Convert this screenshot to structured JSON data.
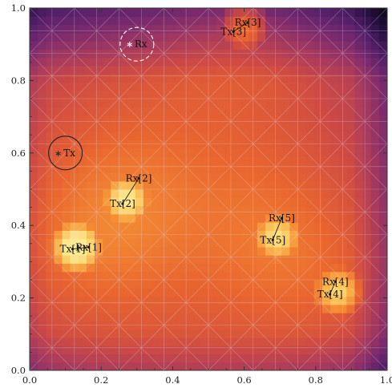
{
  "chart_data": {
    "type": "heatmap",
    "title": "",
    "xlabel": "",
    "ylabel": "",
    "xlim": [
      0.0,
      1.0
    ],
    "ylim": [
      0.0,
      1.0
    ],
    "x_ticks": [
      "0.0",
      "0.2",
      "0.4",
      "0.6",
      "0.8",
      "1.0"
    ],
    "y_ticks": [
      "0.0",
      "0.2",
      "0.4",
      "0.6",
      "0.8",
      "1.0"
    ],
    "grid": true,
    "colormap": [
      "#0f0a1e",
      "#2c1147",
      "#55206a",
      "#7c2b6d",
      "#a73a5e",
      "#cf4b43",
      "#e9652f",
      "#f59034",
      "#fcc35a",
      "#fdeb8f"
    ],
    "hotspots": [
      {
        "x": 0.13,
        "y": 0.34,
        "peak": 0.95
      },
      {
        "x": 0.27,
        "y": 0.47,
        "peak": 0.93
      },
      {
        "x": 0.6,
        "y": 0.95,
        "peak": 0.8
      },
      {
        "x": 0.69,
        "y": 0.37,
        "peak": 0.86
      },
      {
        "x": 0.86,
        "y": 0.22,
        "peak": 0.86
      }
    ],
    "markers": [
      {
        "label": "Tx",
        "x": 0.1,
        "y": 0.6,
        "circle": "solid",
        "color": "#222222"
      },
      {
        "label": "Rx",
        "x": 0.3,
        "y": 0.9,
        "circle": "dashed",
        "color": "#ffffff"
      }
    ],
    "links": [
      {
        "tx_label": "Tx[1]",
        "tx": [
          0.12,
          0.335
        ],
        "rx_label": "Rx[1]",
        "rx": [
          0.165,
          0.34
        ]
      },
      {
        "tx_label": "Tx[2]",
        "tx": [
          0.26,
          0.46
        ],
        "rx_label": "Rx[2]",
        "rx": [
          0.305,
          0.53
        ]
      },
      {
        "tx_label": "Tx[3]",
        "tx": [
          0.57,
          0.935
        ],
        "rx_label": "Rx[3]",
        "rx": [
          0.61,
          0.96
        ]
      },
      {
        "tx_label": "Tx[4]",
        "tx": [
          0.84,
          0.21
        ],
        "rx_label": "Rx[4]",
        "rx": [
          0.855,
          0.245
        ]
      },
      {
        "tx_label": "Tx[5]",
        "tx": [
          0.68,
          0.36
        ],
        "rx_label": "Rx[5]",
        "rx": [
          0.705,
          0.42
        ]
      }
    ]
  }
}
